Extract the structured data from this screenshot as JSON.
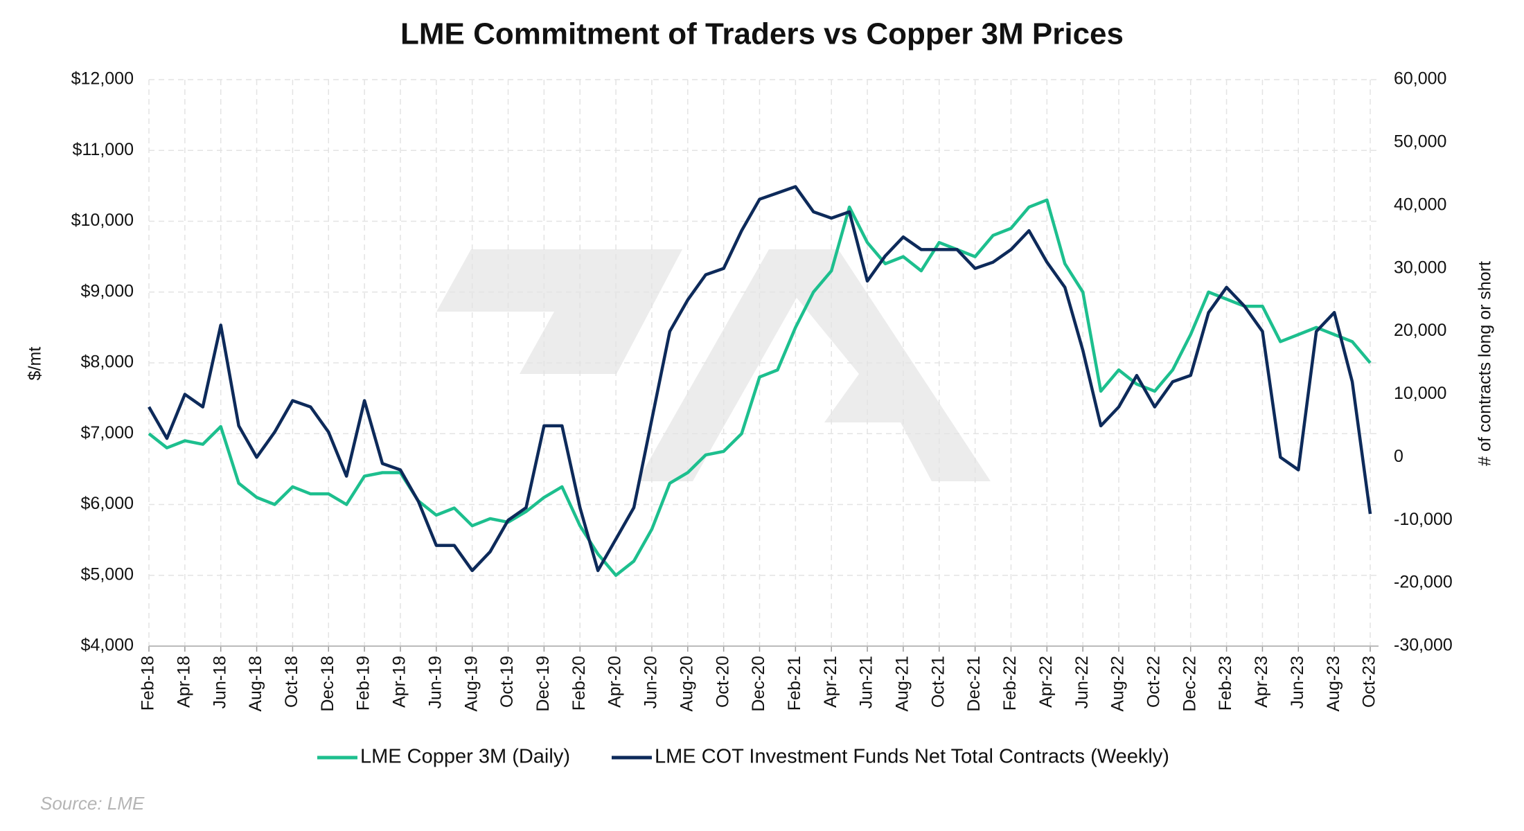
{
  "chart_data": {
    "type": "line",
    "title": "LME Commitment of Traders vs Copper 3M Prices",
    "y_label": "$/mt",
    "y2_label": "# of contracts long or short",
    "source": "Source: LME",
    "grid": true,
    "legend": "bottom",
    "x": [
      "Feb-18",
      "Mar-18",
      "Apr-18",
      "May-18",
      "Jun-18",
      "Jul-18",
      "Aug-18",
      "Sep-18",
      "Oct-18",
      "Nov-18",
      "Dec-18",
      "Jan-19",
      "Feb-19",
      "Mar-19",
      "Apr-19",
      "May-19",
      "Jun-19",
      "Jul-19",
      "Aug-19",
      "Sep-19",
      "Oct-19",
      "Nov-19",
      "Dec-19",
      "Jan-20",
      "Feb-20",
      "Mar-20",
      "Apr-20",
      "May-20",
      "Jun-20",
      "Jul-20",
      "Aug-20",
      "Sep-20",
      "Oct-20",
      "Nov-20",
      "Dec-20",
      "Jan-21",
      "Feb-21",
      "Mar-21",
      "Apr-21",
      "May-21",
      "Jun-21",
      "Jul-21",
      "Aug-21",
      "Sep-21",
      "Oct-21",
      "Nov-21",
      "Dec-21",
      "Jan-22",
      "Feb-22",
      "Mar-22",
      "Apr-22",
      "May-22",
      "Jun-22",
      "Jul-22",
      "Aug-22",
      "Sep-22",
      "Oct-22",
      "Nov-22",
      "Dec-22",
      "Jan-23",
      "Feb-23",
      "Mar-23",
      "Apr-23",
      "May-23",
      "Jun-23",
      "Jul-23",
      "Aug-23",
      "Sep-23",
      "Oct-23"
    ],
    "xticks": [
      "Feb-18",
      "Apr-18",
      "Jun-18",
      "Aug-18",
      "Oct-18",
      "Dec-18",
      "Feb-19",
      "Apr-19",
      "Jun-19",
      "Aug-19",
      "Oct-19",
      "Dec-19",
      "Feb-20",
      "Apr-20",
      "Jun-20",
      "Aug-20",
      "Oct-20",
      "Dec-20",
      "Feb-21",
      "Apr-21",
      "Jun-21",
      "Aug-21",
      "Oct-21",
      "Dec-21",
      "Feb-22",
      "Apr-22",
      "Jun-22",
      "Aug-22",
      "Oct-22",
      "Dec-22",
      "Feb-23",
      "Apr-23",
      "Jun-23",
      "Aug-23",
      "Oct-23"
    ],
    "ylim": [
      4000,
      12000
    ],
    "yticks": [
      {
        "value": 4000,
        "label": "$4,000"
      },
      {
        "value": 5000,
        "label": "$5,000"
      },
      {
        "value": 6000,
        "label": "$6,000"
      },
      {
        "value": 7000,
        "label": "$7,000"
      },
      {
        "value": 8000,
        "label": "$8,000"
      },
      {
        "value": 9000,
        "label": "$9,000"
      },
      {
        "value": 10000,
        "label": "$10,000"
      },
      {
        "value": 11000,
        "label": "$11,000"
      },
      {
        "value": 12000,
        "label": "$12,000"
      }
    ],
    "y2lim": [
      -30000,
      60000
    ],
    "y2ticks": [
      {
        "value": -30000,
        "label": "-30,000"
      },
      {
        "value": -20000,
        "label": "-20,000"
      },
      {
        "value": -10000,
        "label": "-10,000"
      },
      0,
      {
        "value": 10000,
        "label": "10,000"
      },
      {
        "value": 20000,
        "label": "20,000"
      },
      {
        "value": 30000,
        "label": "30,000"
      },
      {
        "value": 40000,
        "label": "40,000"
      },
      {
        "value": 50000,
        "label": "50,000"
      },
      {
        "value": 60000,
        "label": "60,000"
      }
    ],
    "series": [
      {
        "name": "LME Copper 3M (Daily)",
        "color": "#1dbf8e",
        "axis": "y",
        "values": [
          7000,
          6800,
          6900,
          6850,
          7100,
          6300,
          6100,
          6000,
          6250,
          6150,
          6150,
          6000,
          6400,
          6450,
          6450,
          6050,
          5850,
          5950,
          5700,
          5800,
          5750,
          5900,
          6100,
          6250,
          5700,
          5300,
          5000,
          5200,
          5650,
          6300,
          6450,
          6700,
          6750,
          7000,
          7800,
          7900,
          8500,
          9000,
          9300,
          10200,
          9700,
          9400,
          9500,
          9300,
          9700,
          9600,
          9500,
          9800,
          9900,
          10200,
          10300,
          9400,
          9000,
          7600,
          7900,
          7700,
          7600,
          7900,
          8400,
          9000,
          8900,
          8800,
          8800,
          8300,
          8400,
          8500,
          8400,
          8300,
          8000
        ]
      },
      {
        "name": "LME COT Investment Funds Net Total Contracts (Weekly)",
        "color": "#0d2a5a",
        "axis": "y2",
        "values": [
          8000,
          3000,
          10000,
          8000,
          21000,
          5000,
          0,
          4000,
          9000,
          8000,
          4000,
          -3000,
          9000,
          -1000,
          -2000,
          -7000,
          -14000,
          -14000,
          -18000,
          -15000,
          -10000,
          -8000,
          5000,
          5000,
          -8000,
          -18000,
          -13000,
          -8000,
          6000,
          20000,
          25000,
          29000,
          30000,
          36000,
          41000,
          42000,
          43000,
          39000,
          38000,
          39000,
          28000,
          32000,
          35000,
          33000,
          33000,
          33000,
          30000,
          31000,
          33000,
          36000,
          31000,
          27000,
          17000,
          5000,
          8000,
          13000,
          8000,
          12000,
          13000,
          23000,
          27000,
          24000,
          20000,
          0,
          -2000,
          20000,
          23000,
          12000,
          -9000
        ]
      }
    ]
  }
}
